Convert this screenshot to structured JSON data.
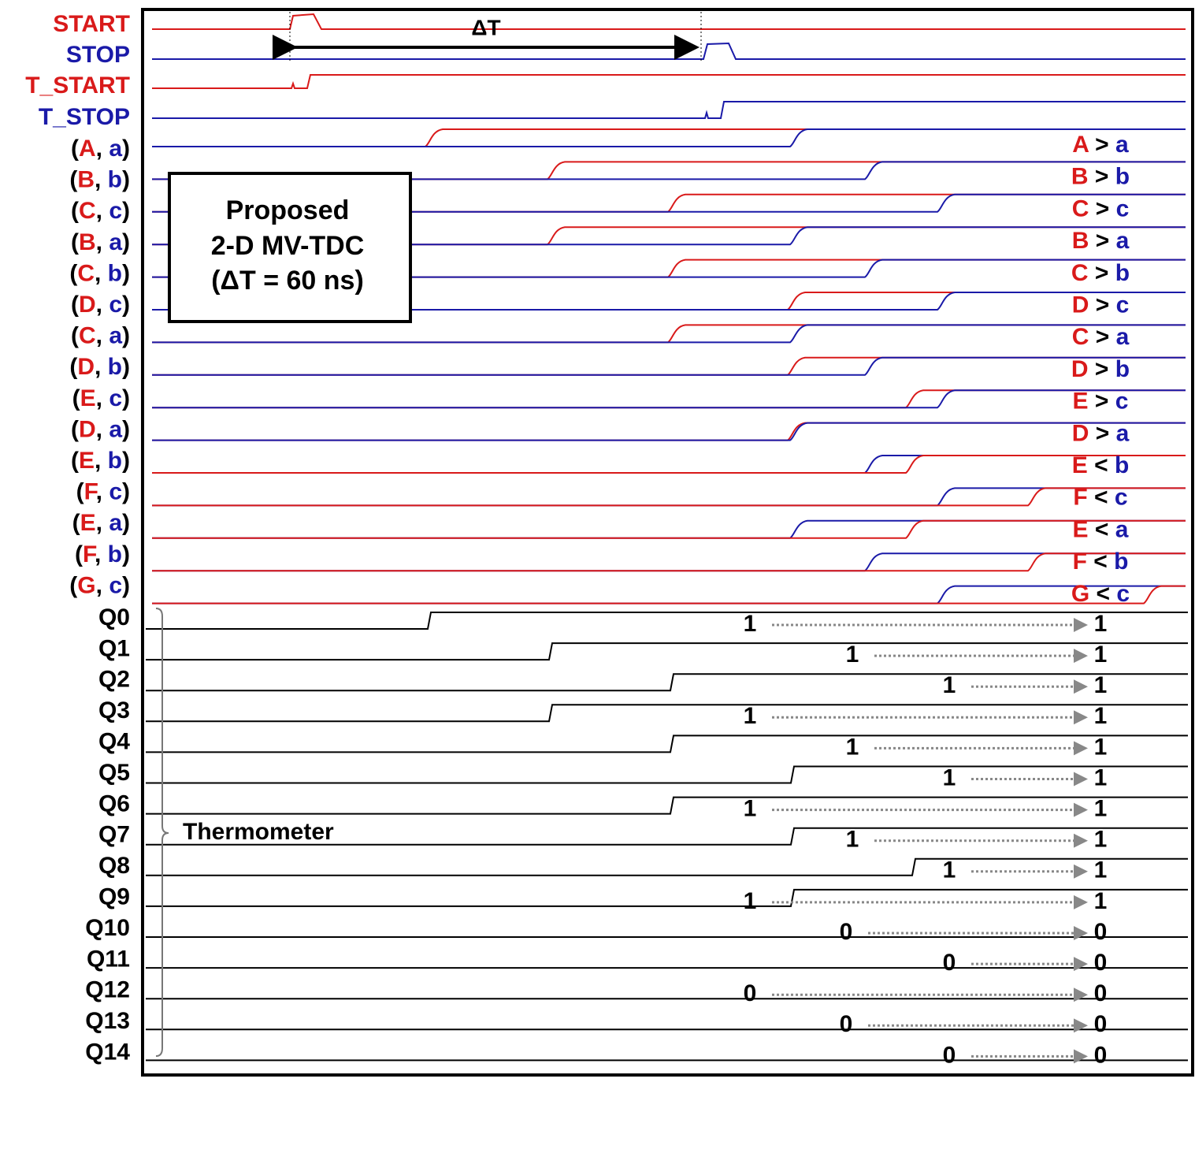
{
  "delta": "ΔT",
  "box_lines": [
    "Proposed",
    "2-D MV-TDC",
    "(ΔT = 60 ns)"
  ],
  "signals": [
    {
      "label": "START",
      "color": "#d91a1a"
    },
    {
      "label": "STOP",
      "color": "#1a1aa8"
    },
    {
      "label": "T_START",
      "color": "#d91a1a"
    },
    {
      "label": "T_STOP",
      "color": "#1a1aa8"
    }
  ],
  "pairs": [
    {
      "label": [
        "(",
        "A",
        ", ",
        "a",
        ")"
      ],
      "result": [
        "A",
        " > ",
        "a"
      ]
    },
    {
      "label": [
        "(",
        "B",
        ", ",
        "b",
        ")"
      ],
      "result": [
        "B",
        " > ",
        "b"
      ]
    },
    {
      "label": [
        "(",
        "C",
        ", ",
        "c",
        ")"
      ],
      "result": [
        "C",
        " > ",
        "c"
      ]
    },
    {
      "label": [
        "(",
        "B",
        ", ",
        "a",
        ")"
      ],
      "result": [
        "B",
        " > ",
        "a"
      ]
    },
    {
      "label": [
        "(",
        "C",
        ", ",
        "b",
        ")"
      ],
      "result": [
        "C",
        " > ",
        "b"
      ]
    },
    {
      "label": [
        "(",
        "D",
        ", ",
        "c",
        ")"
      ],
      "result": [
        "D",
        " > ",
        "c"
      ]
    },
    {
      "label": [
        "(",
        "C",
        ", ",
        "a",
        ")"
      ],
      "result": [
        "C",
        " > ",
        "a"
      ]
    },
    {
      "label": [
        "(",
        "D",
        ", ",
        "b",
        ")"
      ],
      "result": [
        "D",
        " > ",
        "b"
      ]
    },
    {
      "label": [
        "(",
        "E",
        ", ",
        "c",
        ")"
      ],
      "result": [
        "E",
        " > ",
        "c"
      ]
    },
    {
      "label": [
        "(",
        "D",
        ", ",
        "a",
        ")"
      ],
      "result": [
        "D",
        " > ",
        "a"
      ]
    },
    {
      "label": [
        "(",
        "E",
        ", ",
        "b",
        ")"
      ],
      "result": [
        "E",
        " < ",
        "b"
      ]
    },
    {
      "label": [
        "(",
        "F",
        ", ",
        "c",
        ")"
      ],
      "result": [
        "F",
        " < ",
        "c"
      ]
    },
    {
      "label": [
        "(",
        "E",
        ", ",
        "a",
        ")"
      ],
      "result": [
        "E",
        " < ",
        "a"
      ]
    },
    {
      "label": [
        "(",
        "F",
        ", ",
        "b",
        ")"
      ],
      "result": [
        "F",
        " < ",
        "b"
      ]
    },
    {
      "label": [
        "(",
        "G",
        ", ",
        "c",
        ")"
      ],
      "result": [
        "G",
        " < ",
        "c"
      ]
    }
  ],
  "thermometer": "Thermometer",
  "outputs": [
    {
      "label": "Q0",
      "left": 1,
      "right": 1
    },
    {
      "label": "Q1",
      "left": 1,
      "right": 1
    },
    {
      "label": "Q2",
      "left": 1,
      "right": 1
    },
    {
      "label": "Q3",
      "left": 1,
      "right": 1
    },
    {
      "label": "Q4",
      "left": 1,
      "right": 1
    },
    {
      "label": "Q5",
      "left": 1,
      "right": 1
    },
    {
      "label": "Q6",
      "left": 1,
      "right": 1
    },
    {
      "label": "Q7",
      "left": 1,
      "right": 1
    },
    {
      "label": "Q8",
      "left": 1,
      "right": 1
    },
    {
      "label": "Q9",
      "left": 1,
      "right": 1
    },
    {
      "label": "Q10",
      "left": 0,
      "right": 0
    },
    {
      "label": "Q11",
      "left": 0,
      "right": 0
    },
    {
      "label": "Q12",
      "left": 0,
      "right": 0
    },
    {
      "label": "Q13",
      "left": 0,
      "right": 0
    },
    {
      "label": "Q14",
      "left": 0,
      "right": 0
    }
  ]
}
